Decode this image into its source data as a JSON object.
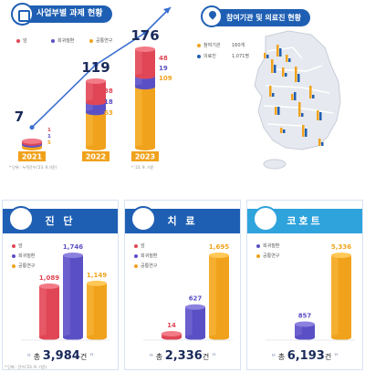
{
  "top_left": {
    "title": "사업부별 과제 현황",
    "legend": [
      "암",
      "희귀질환",
      "공통연구"
    ],
    "colors": {
      "cancer": "#e04655",
      "rare": "#5a4fc4",
      "common": "#f0a21c"
    },
    "note_left": "* 단위 : 누적건수('23. 9.기준)",
    "note_right": "* '23. 9. 기준"
  },
  "top_right": {
    "title": "참여기관 및 의료진 현황",
    "legend": [
      {
        "label": "참여기관",
        "value": "160개"
      },
      {
        "label": "의료진",
        "value": "1,071명"
      }
    ]
  },
  "cards": [
    {
      "title": "진 단",
      "total_prefix": "총",
      "total": "3,984",
      "unit": "건",
      "legend": [
        "암",
        "희귀질환",
        "공통연구"
      ],
      "icon": "document-icon",
      "color": "#1f5fb3",
      "note": "* 단위 : 건수('23. 9. 기준)"
    },
    {
      "title": "치 료",
      "total_prefix": "총",
      "total": "2,336",
      "unit": "건",
      "legend": [
        "암",
        "희귀질환",
        "공통연구"
      ],
      "icon": "medicine-bottle-icon",
      "color": "#1f5fb3"
    },
    {
      "title": "코호트",
      "total_prefix": "총",
      "total": "6,193",
      "unit": "건",
      "legend": [
        "희귀질환",
        "공통연구"
      ],
      "icon": "people-icon",
      "color": "#2fa3dc"
    }
  ],
  "chart_data": [
    {
      "type": "bar",
      "stacked": true,
      "categories": [
        "2021",
        "2022",
        "2023"
      ],
      "totals": [
        7,
        119,
        176
      ],
      "series": [
        {
          "name": "암",
          "values": [
            1,
            38,
            48
          ]
        },
        {
          "name": "희귀질환",
          "values": [
            1,
            18,
            19
          ]
        },
        {
          "name": "공통연구",
          "values": [
            5,
            63,
            109
          ]
        }
      ]
    },
    {
      "type": "bar",
      "categories": [
        "암",
        "희귀질환",
        "공통연구"
      ],
      "values": [
        1089,
        1746,
        1149
      ]
    },
    {
      "type": "bar",
      "categories": [
        "암",
        "희귀질환",
        "공통연구"
      ],
      "values": [
        14,
        627,
        1695
      ]
    },
    {
      "type": "bar",
      "categories": [
        "희귀질환",
        "공통연구"
      ],
      "values": [
        857,
        5336
      ]
    }
  ]
}
